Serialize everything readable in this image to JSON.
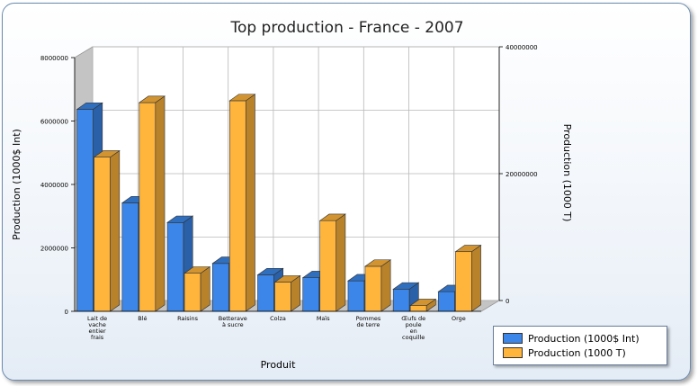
{
  "chart_data": {
    "type": "bar",
    "title": "Top production - France - 2007",
    "xlabel": "Produit",
    "ylabel": "Production (1000$ Int)",
    "y2label": "Production (1000 T)",
    "categories": [
      [
        "Lait de",
        "vache",
        "entier",
        "frais"
      ],
      [
        "Blé"
      ],
      [
        "Raisins"
      ],
      [
        "Betterave",
        "à sucre"
      ],
      [
        "Colza"
      ],
      [
        "Maïs"
      ],
      [
        "Pommes",
        "de terre"
      ],
      [
        "Œufs de",
        "poule",
        "en",
        "coquille"
      ],
      [
        "Orge"
      ]
    ],
    "ylim": [
      0,
      8000000
    ],
    "y_ticks": [
      0,
      2000000,
      4000000,
      6000000,
      8000000
    ],
    "y2lim": [
      0,
      40000000
    ],
    "y2_ticks": [
      0,
      20000000,
      40000000
    ],
    "grid": true,
    "legend_position": "bottom-right",
    "series": [
      {
        "name": "Production (1000$ Int)",
        "axis": "left",
        "color": "#3b86e8",
        "values": [
          6370000,
          3420000,
          2800000,
          1510000,
          1150000,
          1060000,
          960000,
          700000,
          620000
        ]
      },
      {
        "name": "Production (1000 T)",
        "axis": "right",
        "color": "#ffb43c",
        "values": [
          24300000,
          32900000,
          6000000,
          33200000,
          4600000,
          14300000,
          7100000,
          900000,
          9400000
        ]
      }
    ]
  }
}
